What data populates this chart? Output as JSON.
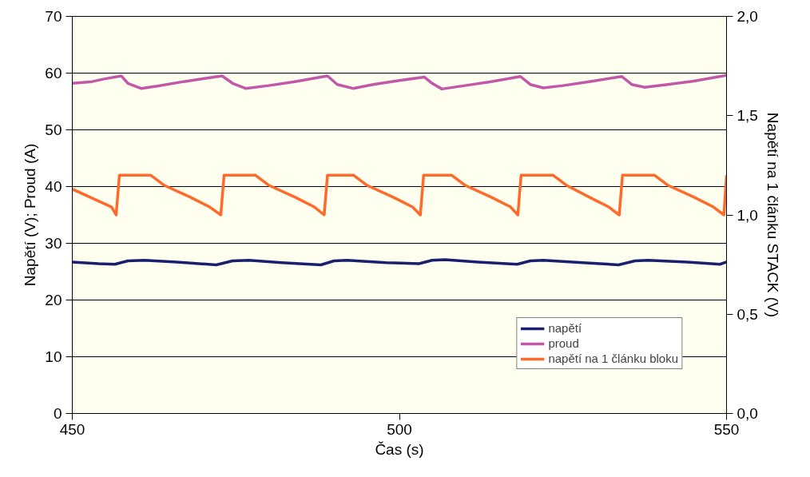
{
  "chart_data": {
    "type": "line",
    "xlabel": "Čas (s)",
    "ylabel": "Napětí (V); Proud (A)",
    "y2label": "Napětí na 1 článku STACK (V)",
    "xlim": [
      450,
      550
    ],
    "xticks": [
      450,
      500,
      550
    ],
    "ylim": [
      0,
      70
    ],
    "yticks": [
      0,
      10,
      20,
      30,
      40,
      50,
      60,
      70
    ],
    "y2lim": [
      0,
      2
    ],
    "y2ticks": [
      {
        "value": 0,
        "label": "0,0"
      },
      {
        "value": 0.5,
        "label": "0,5"
      },
      {
        "value": 1,
        "label": "1,0"
      },
      {
        "value": 1.5,
        "label": "1,5"
      },
      {
        "value": 2,
        "label": "2,0"
      }
    ],
    "grid": "y",
    "legend": "bottom right",
    "series": [
      {
        "name": "napětí",
        "color": "#1a1f6e",
        "x": [
          450,
          454,
          456.5,
          458.5,
          461,
          466,
          472,
          474.5,
          477,
          482,
          488,
          490,
          492,
          498,
          503,
          505,
          507,
          512,
          518,
          520,
          522,
          528,
          533.5,
          536,
          538,
          544,
          549,
          550
        ],
        "values": [
          26.7,
          26.4,
          26.3,
          26.9,
          27.0,
          26.7,
          26.2,
          26.9,
          27.0,
          26.6,
          26.2,
          26.9,
          27.0,
          26.6,
          26.4,
          27.0,
          27.1,
          26.7,
          26.3,
          26.9,
          27.0,
          26.6,
          26.2,
          26.9,
          27.0,
          26.7,
          26.3,
          26.7
        ]
      },
      {
        "name": "proud",
        "color": "#c158a8",
        "x": [
          450,
          453,
          455,
          457.5,
          458.5,
          460.5,
          463,
          467,
          470,
          472.9,
          474.5,
          476.5,
          480,
          484,
          489,
          490.5,
          492.9,
          496,
          500,
          503.8,
          505,
          506.5,
          510,
          514,
          518.5,
          520,
          522,
          525,
          529,
          534,
          535.5,
          537.5,
          541,
          545,
          550
        ],
        "values": [
          58.2,
          58.5,
          59.0,
          59.5,
          58.2,
          57.3,
          57.7,
          58.5,
          59.0,
          59.5,
          58.2,
          57.3,
          57.8,
          58.5,
          59.5,
          58.0,
          57.3,
          58.0,
          58.7,
          59.3,
          58.2,
          57.2,
          57.8,
          58.5,
          59.4,
          58.0,
          57.4,
          57.8,
          58.5,
          59.4,
          58.0,
          57.5,
          58.0,
          58.6,
          59.6
        ]
      },
      {
        "name": "napětí na 1 článku bloku",
        "color": "#ff6a2a",
        "axis": "y2",
        "x": [
          450,
          452,
          454,
          456,
          456.7,
          457.2,
          462,
          464,
          468,
          471,
          472.7,
          473.2,
          478,
          480,
          484,
          487,
          488.5,
          489,
          493,
          495,
          499,
          502,
          503.2,
          503.7,
          508,
          510,
          514,
          517,
          518.1,
          518.6,
          523.5,
          525.5,
          529,
          532,
          533.6,
          534.1,
          539,
          541,
          545,
          548,
          549.6,
          550
        ],
        "values": [
          1.13,
          1.1,
          1.07,
          1.04,
          1.0,
          1.2,
          1.2,
          1.15,
          1.09,
          1.04,
          1.0,
          1.2,
          1.2,
          1.15,
          1.09,
          1.04,
          1.0,
          1.2,
          1.2,
          1.15,
          1.09,
          1.04,
          1.0,
          1.2,
          1.2,
          1.15,
          1.09,
          1.04,
          1.0,
          1.2,
          1.2,
          1.15,
          1.09,
          1.04,
          1.0,
          1.2,
          1.2,
          1.15,
          1.09,
          1.04,
          1.0,
          1.2
        ]
      }
    ]
  }
}
